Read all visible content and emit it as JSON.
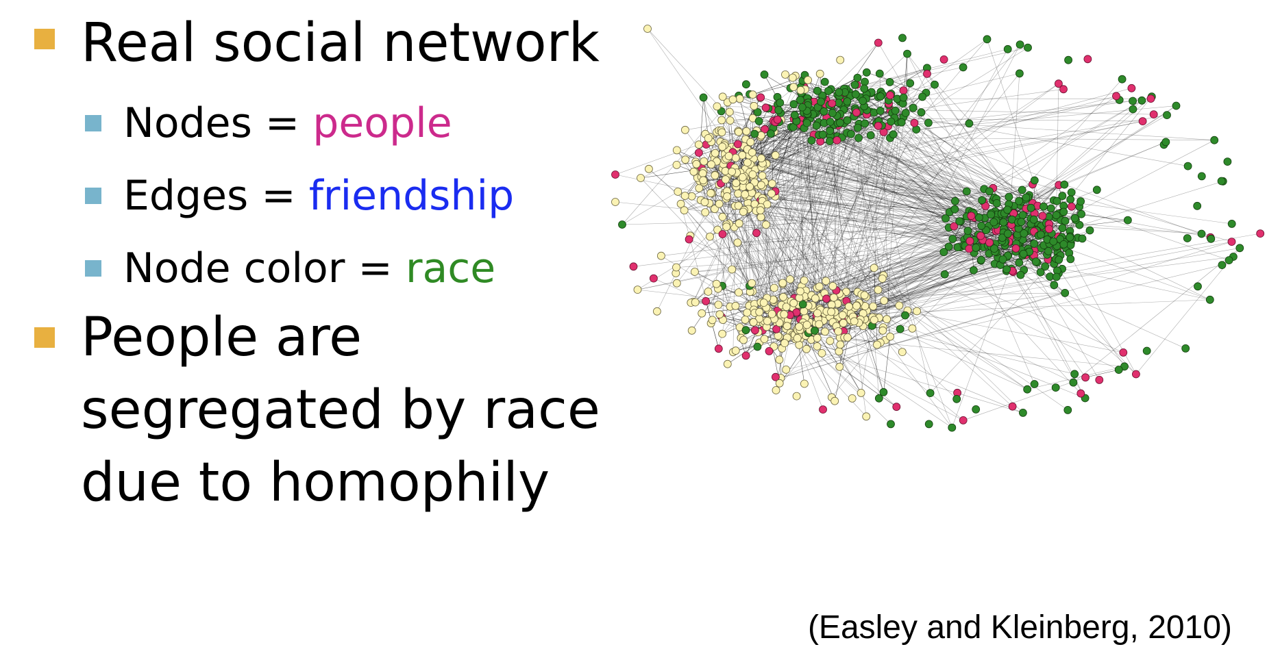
{
  "bullets": {
    "real_network": "Real social network",
    "nodes_label": "Nodes = ",
    "nodes_value": "people",
    "edges_label": "Edges = ",
    "edges_value": "friendship",
    "color_label": "Node color = ",
    "color_value": "race",
    "segregated_line1": "People are",
    "segregated_line2": "segregated by race",
    "segregated_line3": "due to homophily"
  },
  "citation": "(Easley and Kleinberg, 2010)",
  "colors": {
    "level1_marker": "#e8b040",
    "level2_marker": "#78b4cc",
    "people": "#cc2a8c",
    "friendship": "#1a2cf0",
    "race": "#2f8a24",
    "node_yellow": "#fbf3b4",
    "node_green": "#2e8a2a",
    "node_pink": "#e0306e",
    "edge": "#111111"
  },
  "network": {
    "node_colors": [
      "yellow",
      "green",
      "pink"
    ],
    "clusters": [
      "yellow-left",
      "yellow-bottom",
      "green-top",
      "green-right"
    ]
  }
}
